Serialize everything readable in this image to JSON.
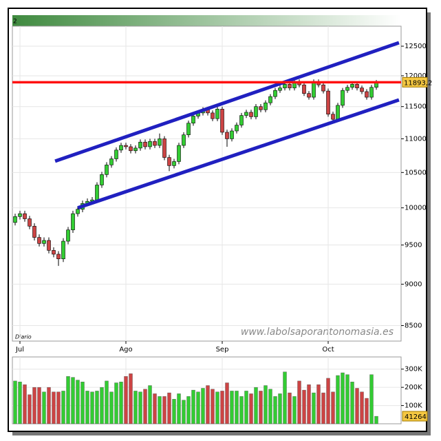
{
  "chart_data": {
    "type": "candlestick",
    "header_label": "2",
    "period_label": "Diario",
    "watermark": "www.labolsaporantonomasia.es",
    "categories": [
      null,
      "Jul",
      null,
      null,
      null,
      null,
      null,
      null,
      null,
      null,
      null,
      null,
      null,
      null,
      null,
      null,
      null,
      null,
      null,
      null,
      null,
      null,
      null,
      "Ago",
      null,
      null,
      null,
      null,
      null,
      null,
      null,
      null,
      null,
      null,
      null,
      null,
      null,
      null,
      null,
      null,
      null,
      null,
      null,
      "Sep",
      null,
      null,
      null,
      null,
      null,
      null,
      null,
      null,
      null,
      null,
      null,
      null,
      null,
      null,
      null,
      null,
      null,
      null,
      null,
      null,
      null,
      "Oct",
      null,
      null,
      null,
      null,
      null,
      null,
      null,
      null,
      null,
      null
    ],
    "open": [
      9800,
      9880,
      9920,
      9850,
      9750,
      9600,
      9520,
      9560,
      9430,
      9380,
      9320,
      9550,
      9700,
      9920,
      9980,
      10060,
      10090,
      10110,
      10320,
      10470,
      10610,
      10700,
      10830,
      10900,
      10880,
      10820,
      10860,
      10950,
      10880,
      10960,
      10900,
      11000,
      10720,
      10600,
      10660,
      10900,
      11060,
      11240,
      11350,
      11400,
      11450,
      11400,
      11310,
      11460,
      11100,
      11000,
      11120,
      11210,
      11360,
      11410,
      11340,
      11500,
      11450,
      11560,
      11660,
      11760,
      11800,
      11860,
      11800,
      11900,
      11850,
      11710,
      11650,
      11900,
      11850,
      11750,
      11380,
      11300,
      11520,
      11760,
      11810,
      11860,
      11800,
      11740,
      11650,
      11810
    ],
    "high": [
      9920,
      9960,
      9960,
      9890,
      9790,
      9640,
      9600,
      9600,
      9470,
      9420,
      9590,
      9740,
      9960,
      10020,
      10100,
      10130,
      10150,
      10360,
      10510,
      10650,
      10740,
      10870,
      10940,
      10940,
      10920,
      10900,
      10990,
      10990,
      11000,
      11000,
      11080,
      11040,
      10760,
      10700,
      10940,
      11100,
      11280,
      11390,
      11440,
      11490,
      11490,
      11440,
      11500,
      11500,
      11140,
      11160,
      11250,
      11400,
      11450,
      11450,
      11540,
      11540,
      11600,
      11700,
      11800,
      11840,
      11900,
      11900,
      11940,
      11940,
      11890,
      11750,
      11940,
      11940,
      11890,
      11790,
      11420,
      11560,
      11800,
      11850,
      11900,
      11900,
      11840,
      11780,
      11850,
      11930
    ],
    "low": [
      9760,
      9840,
      9810,
      9710,
      9560,
      9480,
      9480,
      9390,
      9340,
      9230,
      9280,
      9510,
      9660,
      9880,
      9940,
      10020,
      10050,
      10070,
      10280,
      10430,
      10570,
      10660,
      10790,
      10840,
      10780,
      10780,
      10820,
      10840,
      10840,
      10860,
      10860,
      10680,
      10520,
      10560,
      10620,
      10860,
      11020,
      11200,
      11310,
      11360,
      11360,
      11270,
      11270,
      11060,
      10880,
      10960,
      11080,
      11170,
      11320,
      11300,
      11300,
      11410,
      11410,
      11520,
      11620,
      11720,
      11760,
      11760,
      11760,
      11810,
      11670,
      11610,
      11610,
      11810,
      11710,
      11340,
      11260,
      11260,
      11480,
      11720,
      11770,
      11760,
      11700,
      11610,
      11610,
      11770
    ],
    "close": [
      9880,
      9920,
      9850,
      9750,
      9600,
      9520,
      9560,
      9430,
      9380,
      9320,
      9550,
      9700,
      9920,
      9980,
      10060,
      10090,
      10110,
      10320,
      10470,
      10610,
      10700,
      10830,
      10900,
      10880,
      10820,
      10860,
      10950,
      10880,
      10960,
      10900,
      11000,
      10720,
      10600,
      10660,
      10900,
      11060,
      11240,
      11350,
      11400,
      11450,
      11400,
      11310,
      11460,
      11100,
      11000,
      11120,
      11210,
      11360,
      11410,
      11340,
      11500,
      11450,
      11560,
      11660,
      11760,
      11800,
      11860,
      11800,
      11900,
      11850,
      11710,
      11650,
      11900,
      11850,
      11750,
      11380,
      11300,
      11520,
      11760,
      11810,
      11860,
      11800,
      11740,
      11650,
      11810,
      11893.2
    ],
    "up_color": "#33cc33",
    "down_color": "#cc4444",
    "ylim": [
      8320,
      12850
    ],
    "log_scale": true,
    "yticks": [
      8500,
      9000,
      9500,
      10000,
      10500,
      11000,
      11500,
      12000,
      12500
    ],
    "grid": true,
    "trendlines": [
      {
        "color": "#2020c0",
        "points": [
          [
            8.3,
            10666
          ],
          [
            79.7,
            12560
          ]
        ]
      },
      {
        "color": "#2020c0",
        "points": [
          [
            13,
            10000
          ],
          [
            79.7,
            11607
          ]
        ]
      }
    ],
    "hline": {
      "value": 11893.2,
      "label": "11893,2",
      "color": "#ff1010"
    },
    "volume": {
      "values": [
        235000,
        230000,
        215000,
        160000,
        200000,
        200000,
        175000,
        200000,
        175000,
        175000,
        180000,
        260000,
        255000,
        240000,
        230000,
        180000,
        175000,
        180000,
        200000,
        235000,
        175000,
        225000,
        230000,
        260000,
        275000,
        180000,
        175000,
        190000,
        210000,
        165000,
        150000,
        150000,
        170000,
        135000,
        165000,
        130000,
        150000,
        185000,
        175000,
        195000,
        210000,
        190000,
        175000,
        180000,
        225000,
        180000,
        180000,
        150000,
        180000,
        165000,
        200000,
        180000,
        210000,
        190000,
        150000,
        165000,
        285000,
        170000,
        150000,
        235000,
        185000,
        215000,
        170000,
        215000,
        170000,
        250000,
        175000,
        265000,
        280000,
        270000,
        230000,
        195000,
        175000,
        140000,
        270000,
        41264
      ],
      "ylim": [
        0,
        367000
      ],
      "yticks": [
        {
          "value": 100000,
          "label": "100K"
        },
        {
          "value": 200000,
          "label": "200K"
        },
        {
          "value": 300000,
          "label": "300K"
        }
      ]
    }
  }
}
